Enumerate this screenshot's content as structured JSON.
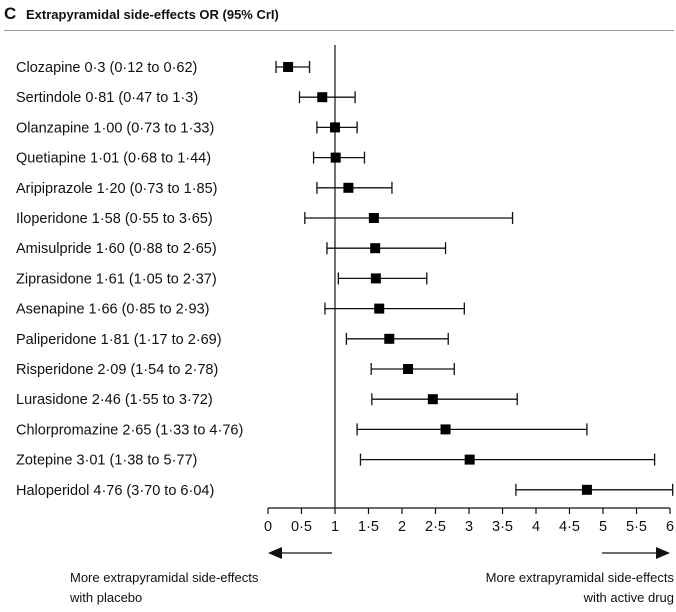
{
  "panel": {
    "letter": "C",
    "title": "Extrapyramidal side-effects OR (95% CrI)"
  },
  "notes": {
    "left": [
      "More extrapyramidal side-effects",
      "with placebo"
    ],
    "right": [
      "More extrapyramidal side-effects",
      "with active drug"
    ]
  },
  "chart_data": {
    "type": "forest",
    "title": "Extrapyramidal side-effects OR (95% CrI)",
    "xlim": [
      0,
      6
    ],
    "reference_line": 1,
    "x_ticks": [
      0,
      0.5,
      1,
      1.5,
      2,
      2.5,
      3,
      3.5,
      4,
      4.5,
      5,
      5.5,
      6
    ],
    "x_tick_labels": [
      "0",
      "0·5",
      "1",
      "1·5",
      "2",
      "2·5",
      "3",
      "3·5",
      "4",
      "4·5",
      "5",
      "5·5",
      "6"
    ],
    "rows": [
      {
        "label": "Clozapine 0·3 (0·12 to 0·62)",
        "or": 0.3,
        "low": 0.12,
        "high": 0.62
      },
      {
        "label": "Sertindole 0·81 (0·47 to 1·3)",
        "or": 0.81,
        "low": 0.47,
        "high": 1.3
      },
      {
        "label": "Olanzapine 1·00 (0·73 to 1·33)",
        "or": 1.0,
        "low": 0.73,
        "high": 1.33
      },
      {
        "label": "Quetiapine 1·01 (0·68 to 1·44)",
        "or": 1.01,
        "low": 0.68,
        "high": 1.44
      },
      {
        "label": "Aripiprazole 1·20 (0·73 to 1·85)",
        "or": 1.2,
        "low": 0.73,
        "high": 1.85
      },
      {
        "label": "Iloperidone 1·58 (0·55 to 3·65)",
        "or": 1.58,
        "low": 0.55,
        "high": 3.65
      },
      {
        "label": "Amisulpride 1·60 (0·88 to 2·65)",
        "or": 1.6,
        "low": 0.88,
        "high": 2.65
      },
      {
        "label": "Ziprasidone 1·61 (1·05 to 2·37)",
        "or": 1.61,
        "low": 1.05,
        "high": 2.37
      },
      {
        "label": "Asenapine 1·66 (0·85 to 2·93)",
        "or": 1.66,
        "low": 0.85,
        "high": 2.93
      },
      {
        "label": "Paliperidone 1·81 (1·17 to 2·69)",
        "or": 1.81,
        "low": 1.17,
        "high": 2.69
      },
      {
        "label": "Risperidone 2·09 (1·54 to 2·78)",
        "or": 2.09,
        "low": 1.54,
        "high": 2.78
      },
      {
        "label": "Lurasidone 2·46 (1·55 to 3·72)",
        "or": 2.46,
        "low": 1.55,
        "high": 3.72
      },
      {
        "label": "Chlorpromazine 2·65 (1·33 to 4·76)",
        "or": 2.65,
        "low": 1.33,
        "high": 4.76
      },
      {
        "label": "Zotepine 3·01 (1·38 to 5·77)",
        "or": 3.01,
        "low": 1.38,
        "high": 5.77
      },
      {
        "label": "Haloperidol 4·76 (3·70 to 6·04)",
        "or": 4.76,
        "low": 3.7,
        "high": 6.04
      }
    ]
  }
}
